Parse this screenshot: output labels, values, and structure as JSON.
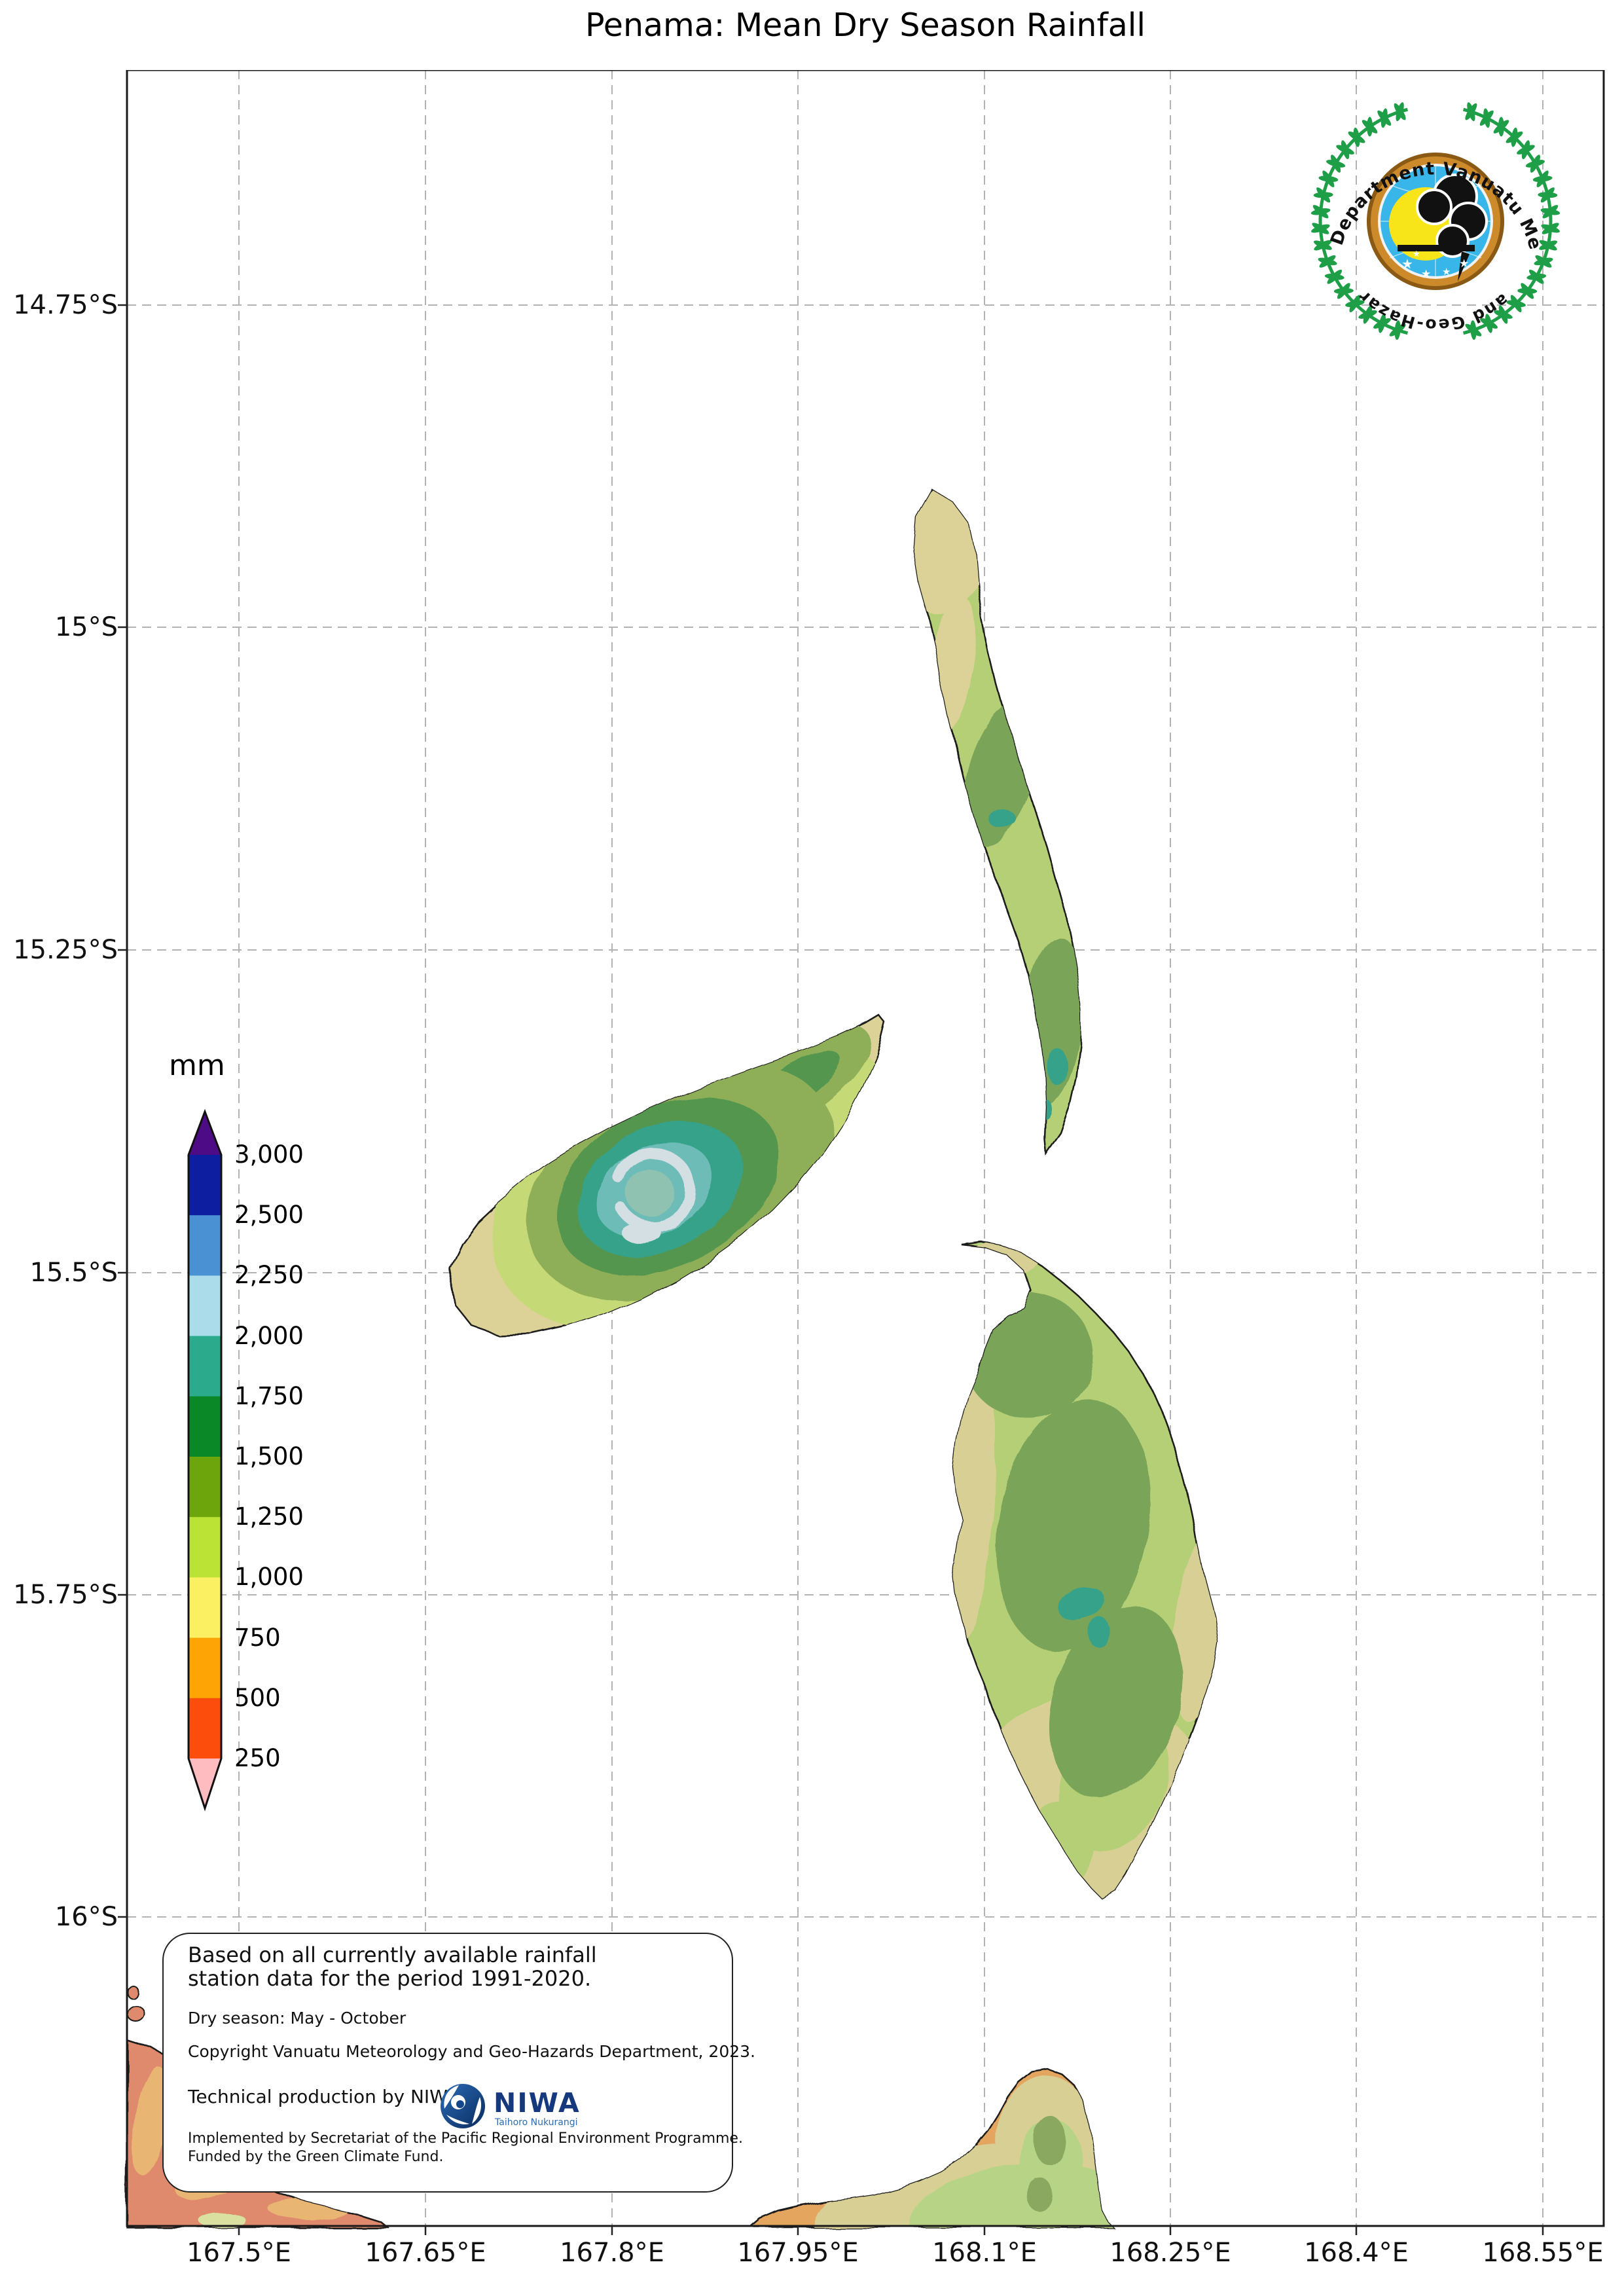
{
  "title": "Penama: Mean Dry Season Rainfall",
  "axes": {
    "y_ticks": [
      "14.75°S",
      "15°S",
      "15.25°S",
      "15.5°S",
      "15.75°S",
      "16°S"
    ],
    "x_ticks": [
      "167.5°E",
      "167.65°E",
      "167.8°E",
      "167.95°E",
      "168.1°E",
      "168.25°E",
      "168.4°E",
      "168.55°E"
    ]
  },
  "legend": {
    "unit": "mm",
    "boundary_labels": [
      "3,000",
      "2,500",
      "2,250",
      "2,000",
      "1,750",
      "1,500",
      "1,250",
      "1,000",
      "750",
      "500",
      "250"
    ],
    "segment_colors": [
      "#0d1ea0",
      "#4a91d3",
      "#aadde9",
      "#2bab8c",
      "#0a8827",
      "#6ca50c",
      "#bae336",
      "#faf062",
      "#ffa405",
      "#fc4d0d"
    ],
    "above_max_color": "#4e0b86",
    "below_min_color": "#ffbcc0"
  },
  "map_colors": {
    "tan": "#dcd298",
    "khaki": "#d8cf94",
    "yellow_green": "#c6d977",
    "light_green": "#b4cf74",
    "light_green2": "#b7d486",
    "olive": "#8fae58",
    "ridge_green": "#7aa458",
    "sage": "#8aa85f",
    "dark_green": "#55964f",
    "teal": "#35a289",
    "cyan": "#6ebcb8",
    "crater_white": "#d3dfe2",
    "crater_inner": "#8fc2b0",
    "orange": "#e4a55e",
    "salmon": "#df8a6c",
    "tan_orange": "#e9b572",
    "pale_green": "#d9e0a0",
    "coastline": "#1a1a1a",
    "gridline": "#b3b3b3"
  },
  "info_box": {
    "lines": [
      "Based on all currently available rainfall",
      "station data for the period 1991-2020."
    ],
    "dry_season": "Dry season: May - October",
    "copyright": "Copyright Vanuatu Meteorology and Geo-Hazards Department, 2023.",
    "production": "Technical production by NIWA",
    "implemented": "Implemented by Secretariat of the Pacific Regional Environment Programme.",
    "funded": "Funded by the Green Climate Fund."
  },
  "niwa_logo": {
    "name": "NIWA",
    "tagline": "Taihoro Nukurangi"
  },
  "vmgd_logo": {
    "arc_top": "Department Vanuatu Meteorology",
    "arc_bottom": "and Geo-Hazards"
  }
}
